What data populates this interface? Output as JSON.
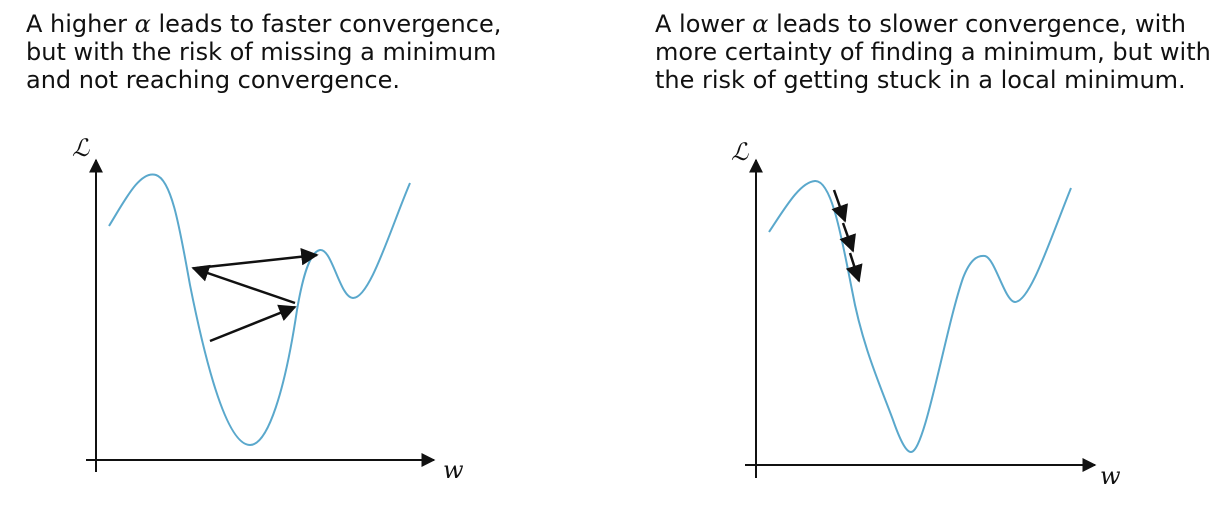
{
  "left_panel": {
    "caption_lines": [
      "A higher α leads to faster convergence,",
      "but with the risk of missing a minimum",
      "and not reaching convergence."
    ],
    "y_label": "ℒ",
    "x_label": "w"
  },
  "right_panel": {
    "caption_lines": [
      "A lower α leads to slower convergence, with",
      "more certainty of finding a minimum, but with",
      "the risk of getting stuck in a local minimum."
    ],
    "y_label": "ℒ",
    "x_label": "w"
  },
  "colors": {
    "curve": "#5aa8cc",
    "arrow": "#111111",
    "axis": "#111111"
  }
}
